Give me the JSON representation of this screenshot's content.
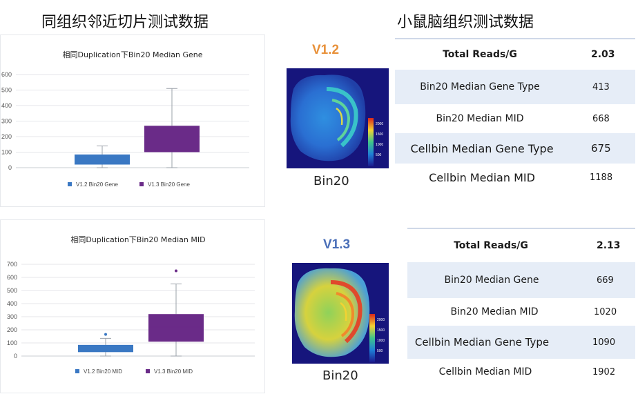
{
  "headings": {
    "left": "同组织邻近切片测试数据",
    "right": "小鼠脑组织测试数据"
  },
  "chart_data": [
    {
      "type": "boxplot",
      "title": "相同Duplication下Bin20 Median Gene",
      "ylim": [
        0,
        600
      ],
      "yticks": [
        0,
        100,
        200,
        300,
        400,
        500,
        600
      ],
      "grid": true,
      "legend_position": "bottom",
      "series": [
        {
          "name": "V1.2 Bin20 Gene",
          "color": "#3a78c3",
          "min": 0,
          "q1": 20,
          "median": 55,
          "q3": 85,
          "max": 140,
          "outliers": []
        },
        {
          "name": "V1.3 Bin20 Gene",
          "color": "#6a2b88",
          "min": 0,
          "q1": 100,
          "median": 200,
          "q3": 270,
          "max": 510,
          "outliers": []
        }
      ]
    },
    {
      "type": "boxplot",
      "title": "相同Duplication下Bin20 Median MID",
      "ylim": [
        0,
        700
      ],
      "yticks": [
        0,
        100,
        200,
        300,
        400,
        500,
        600,
        700
      ],
      "grid": true,
      "legend_position": "bottom",
      "series": [
        {
          "name": "V1.2 Bin20 MID",
          "color": "#3a78c3",
          "min": 0,
          "q1": 30,
          "median": 55,
          "q3": 85,
          "max": 135,
          "outliers": [
            165
          ]
        },
        {
          "name": "V1.3 Bin20 MID",
          "color": "#6a2b88",
          "min": 0,
          "q1": 110,
          "median": 220,
          "q3": 320,
          "max": 550,
          "outliers": [
            650
          ]
        }
      ]
    }
  ],
  "samples": [
    {
      "version": "V1.2",
      "version_color": "#e8913a",
      "bin_label": "Bin20",
      "colorbar_ticks": [
        "2000",
        "1500",
        "1000",
        "500"
      ],
      "stats": [
        {
          "label": "Total Reads/G",
          "value": "2.03"
        },
        {
          "label": "Bin20 Median Gene Type",
          "value": "413"
        },
        {
          "label": "Bin20 Median MID",
          "value": "668"
        },
        {
          "label": "Cellbin Median Gene Type",
          "value": "675"
        },
        {
          "label": "Cellbin Median MID",
          "value": "1188"
        }
      ]
    },
    {
      "version": "V1.3",
      "version_color": "#4a6fb8",
      "bin_label": "Bin20",
      "colorbar_ticks": [
        "2000",
        "1500",
        "1000",
        "500"
      ],
      "stats": [
        {
          "label": "Total Reads/G",
          "value": "2.13"
        },
        {
          "label": "Bin20 Median Gene",
          "value": "669"
        },
        {
          "label": "Bin20 Median MID",
          "value": "1020"
        },
        {
          "label": "Cellbin Median Gene Type",
          "value": "1090"
        },
        {
          "label": "Cellbin Median MID",
          "value": "1902"
        }
      ]
    }
  ]
}
